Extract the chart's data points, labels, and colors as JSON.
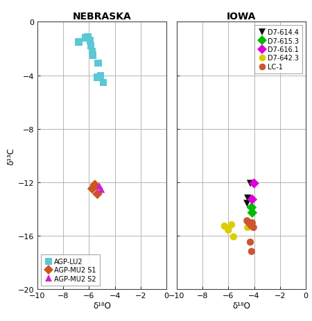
{
  "title_left": "NEBRASKA",
  "title_right": "IOWA",
  "xlabel": "δ¹⁸O",
  "ylabel": "δ¹³C",
  "xlim": [
    -10,
    0
  ],
  "ylim": [
    -20,
    0
  ],
  "xticks": [
    -10,
    -8,
    -6,
    -4,
    -2,
    0
  ],
  "yticks": [
    0,
    -4,
    -8,
    -12,
    -16,
    -20
  ],
  "nebraska": {
    "AGP-LU2": {
      "color": "#5bc8d4",
      "marker": "s",
      "size": 55,
      "x": [
        -6.8,
        -6.3,
        -6.1,
        -5.9,
        -5.85,
        -5.75,
        -5.7,
        -5.3,
        -5.1,
        -5.35,
        -4.9
      ],
      "y": [
        -1.5,
        -1.2,
        -1.1,
        -1.4,
        -1.8,
        -2.2,
        -2.5,
        -3.1,
        -4.05,
        -4.15,
        -4.55
      ]
    },
    "AGP-MU2 S1": {
      "color": "#cc5522",
      "marker": "D",
      "size": 55,
      "x": [
        -5.75,
        -5.55,
        -5.35
      ],
      "y": [
        -12.5,
        -12.2,
        -12.9
      ]
    },
    "AGP-MU2 S2": {
      "color": "#cc22cc",
      "marker": "^",
      "size": 55,
      "x": [
        -5.2,
        -5.05
      ],
      "y": [
        -12.3,
        -12.55
      ]
    }
  },
  "iowa": {
    "D7-614.4": {
      "color": "#111111",
      "marker": "v",
      "size": 55,
      "x": [
        -4.3,
        -4.5,
        -4.55
      ],
      "y": [
        -12.1,
        -13.2,
        -13.6
      ]
    },
    "D7-615.3": {
      "color": "#00bb00",
      "marker": "D",
      "size": 55,
      "x": [
        -4.2,
        -4.15
      ],
      "y": [
        -13.9,
        -14.3
      ]
    },
    "D7-616.1": {
      "color": "#dd00dd",
      "marker": "D",
      "size": 55,
      "x": [
        -4.0,
        -4.15
      ],
      "y": [
        -12.1,
        -13.3
      ]
    },
    "D7-642.3": {
      "color": "#ddcc00",
      "marker": "o",
      "size": 55,
      "x": [
        -6.3,
        -6.0,
        -5.75,
        -5.6,
        -4.5
      ],
      "y": [
        -15.3,
        -15.6,
        -15.2,
        -16.1,
        -15.4
      ]
    },
    "LC-1": {
      "color": "#cc5533",
      "marker": "o",
      "size": 55,
      "x": [
        -4.55,
        -4.35,
        -4.25,
        -4.15,
        -4.05,
        -4.3,
        -4.2,
        -4.5
      ],
      "y": [
        -14.9,
        -15.1,
        -15.25,
        -15.05,
        -15.4,
        -16.5,
        -17.2,
        -14.95
      ]
    }
  },
  "bg_color": "#ffffff",
  "grid_color": "#aaaaaa"
}
